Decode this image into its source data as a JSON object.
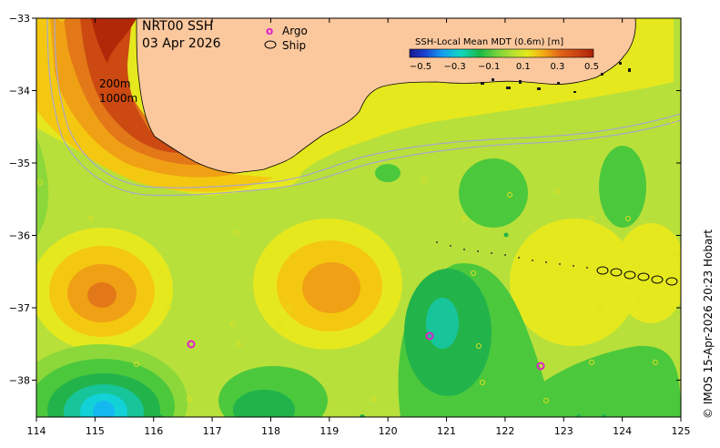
{
  "title": {
    "line1": "NRT00 SSH",
    "line2": "03 Apr 2026"
  },
  "legend": {
    "argo_symbol": "o",
    "argo_label": "Argo",
    "ship_label": "Ship"
  },
  "contours": {
    "c200": "200m",
    "c1000": "1000m"
  },
  "colorbar": {
    "title": "SSH-Local Mean MDT (0.6m) [m]",
    "ticks": [
      "−0.5",
      "−0.3",
      "−0.1",
      "0.1",
      "0.3",
      "0.5"
    ],
    "colors": [
      "#1a1a8c",
      "#1c3fd0",
      "#1e6ee8",
      "#14a0f0",
      "#10c8e8",
      "#10d6c0",
      "#10c88a",
      "#18b848",
      "#3cc83c",
      "#7ad43a",
      "#b4e030",
      "#e4e81c",
      "#f2d010",
      "#f4b014",
      "#ee8a18",
      "#e06418",
      "#c84012",
      "#aa2008"
    ]
  },
  "credit": "© IMOS 15-Apr-2026 20:23 Hobart",
  "axes": {
    "x_ticks": [
      "114",
      "115",
      "116",
      "117",
      "118",
      "119",
      "120",
      "121",
      "122",
      "123",
      "124",
      "125"
    ],
    "y_ticks": [
      "−33",
      "−34",
      "−35",
      "−36",
      "−37",
      "−38"
    ]
  },
  "colors": {
    "land": "#fbc89e",
    "base_green": "#b8e03a",
    "yellow": "#e6e81e",
    "light_green": "#8cd83a",
    "green": "#4cc83c",
    "dark_green": "#22b44a",
    "teal": "#18c49a",
    "cyan": "#12d2d8",
    "orange_light": "#f4c810",
    "orange": "#f0a014",
    "orange_dark": "#e27818",
    "red_orange": "#cc4a12",
    "red": "#b02808"
  }
}
